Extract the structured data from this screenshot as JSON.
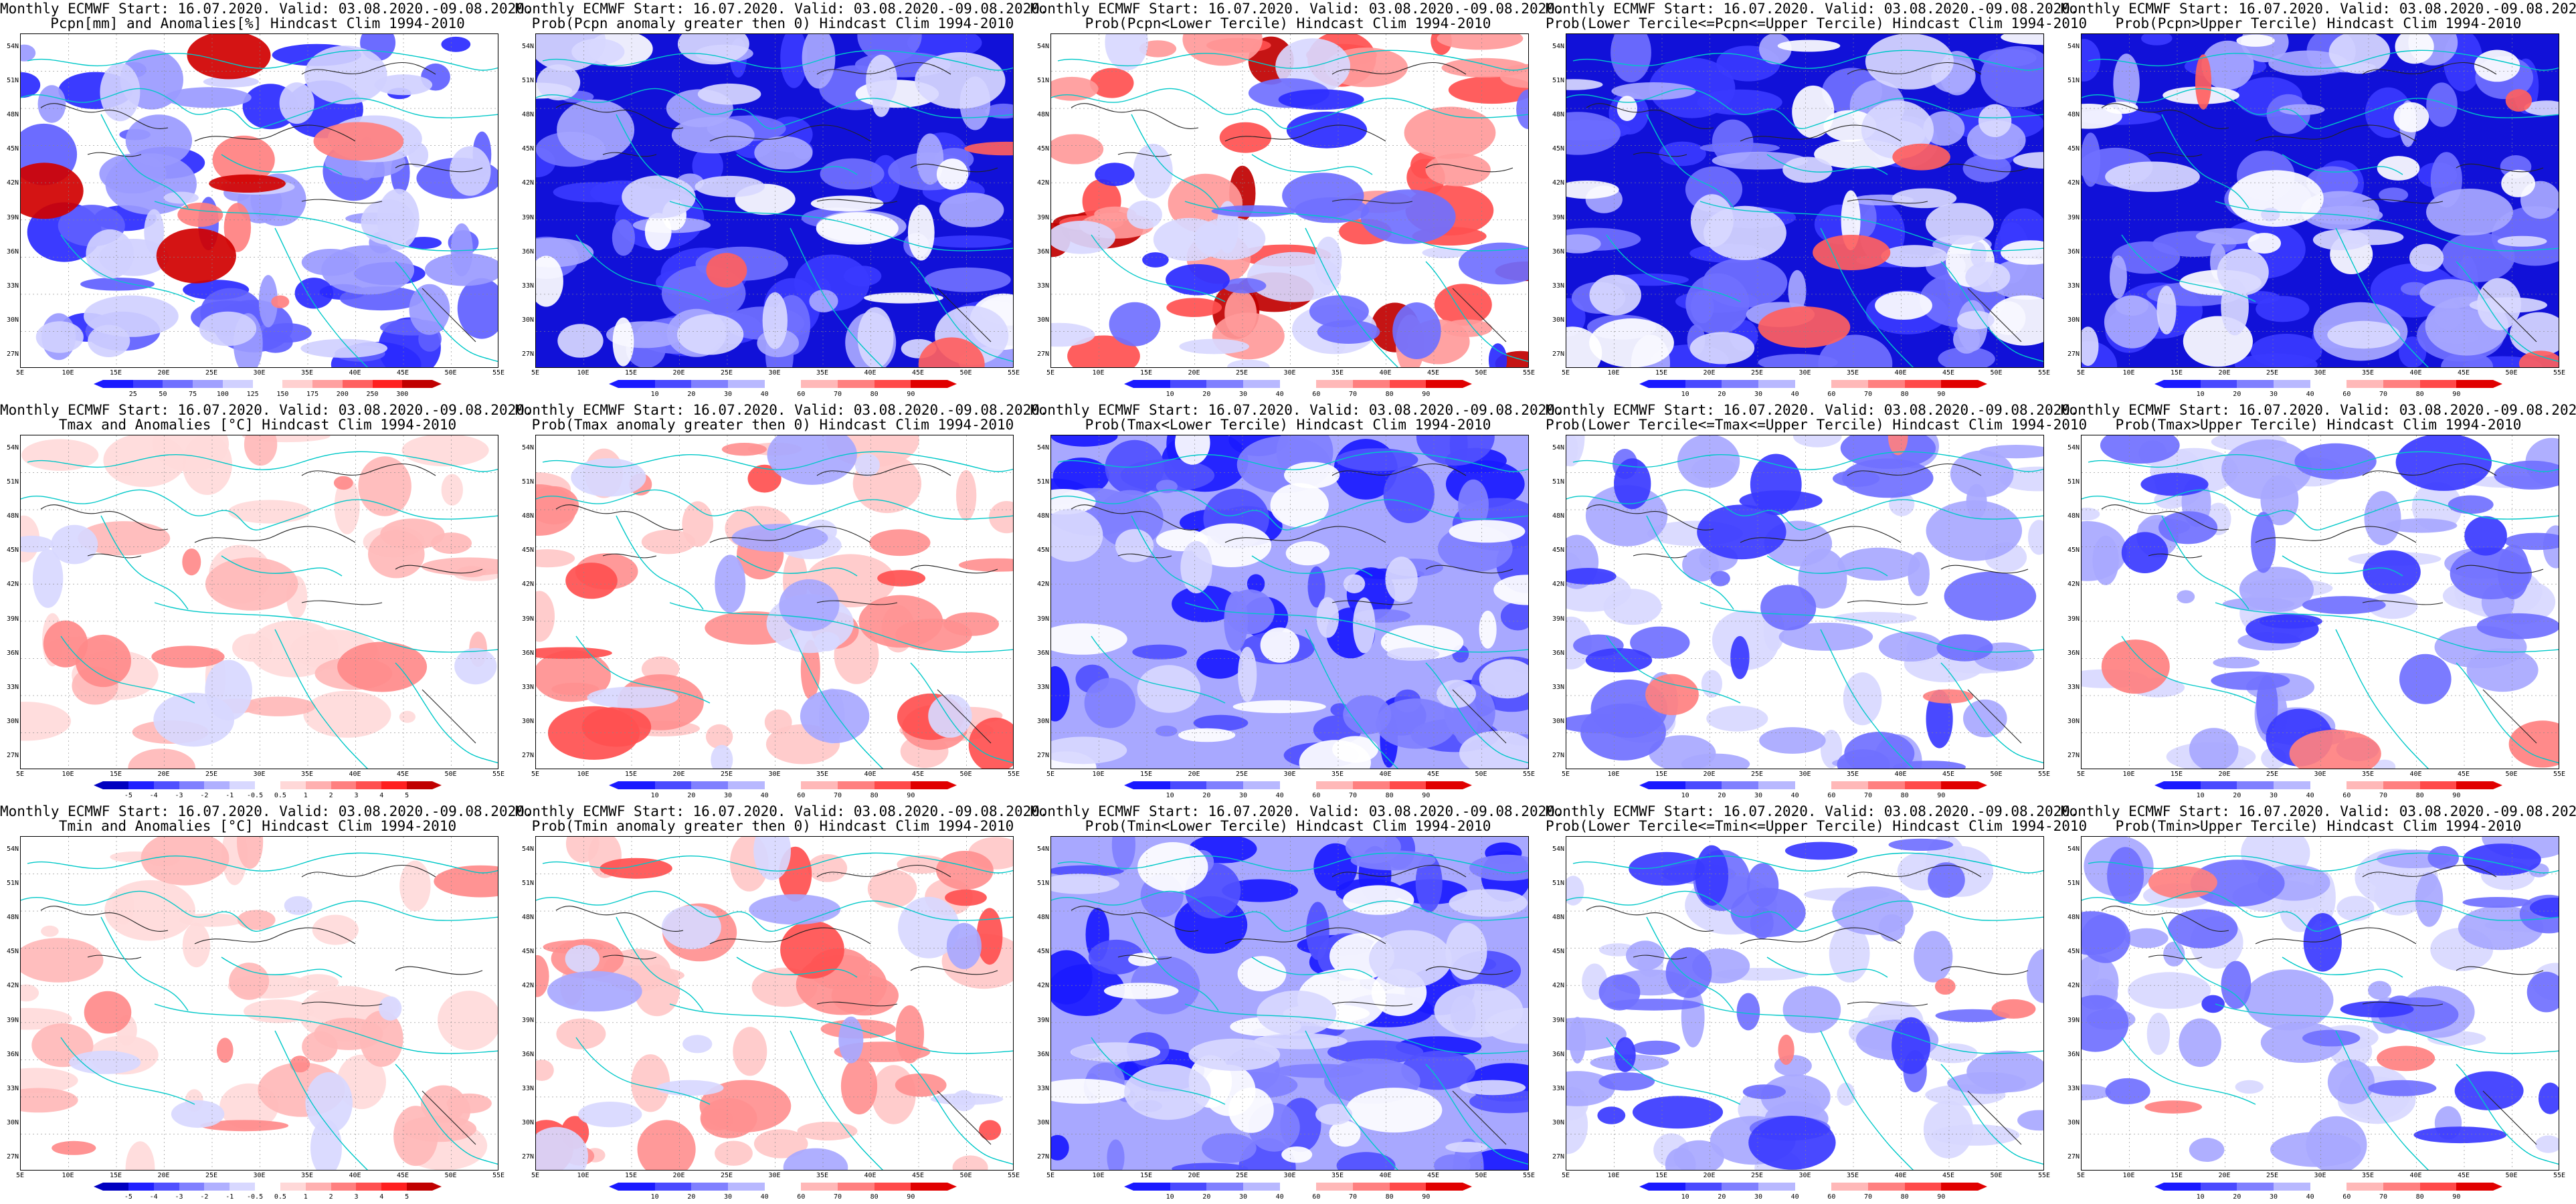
{
  "title_prefix": "Monthly ECMWF Start: 16.07.2020. Valid: 03.08.2020.-09.08.2020.",
  "lat_labels": [
    "54N",
    "51N",
    "48N",
    "45N",
    "42N",
    "39N",
    "36N",
    "33N",
    "30N",
    "27N"
  ],
  "lon_labels": [
    "5E",
    "10E",
    "15E",
    "20E",
    "25E",
    "30E",
    "35E",
    "40E",
    "45E",
    "50E",
    "55E"
  ],
  "scales": {
    "pcpn": {
      "ticks": [
        "25",
        "50",
        "75",
        "100",
        "125",
        "150",
        "175",
        "200",
        "250",
        "300"
      ],
      "colors": [
        "#1a1aff",
        "#4040ff",
        "#7070ff",
        "#a0a0ff",
        "#d0d0ff",
        "#ffffff",
        "#ffd0d0",
        "#ffa0a0",
        "#ff6060",
        "#ff2020",
        "#c00000"
      ]
    },
    "anom": {
      "ticks": [
        "-5",
        "-4",
        "-3",
        "-2",
        "-1",
        "-0.5",
        "0.5",
        "1",
        "2",
        "3",
        "4",
        "5"
      ],
      "colors": [
        "#0000c0",
        "#2020ff",
        "#5050ff",
        "#8080ff",
        "#b0b0ff",
        "#d8d8ff",
        "#ffffff",
        "#ffd8d8",
        "#ffb0b0",
        "#ff8080",
        "#ff5050",
        "#ff2020",
        "#c00000"
      ]
    },
    "prob": {
      "ticks": [
        "10",
        "20",
        "30",
        "40",
        "60",
        "70",
        "80",
        "90"
      ],
      "colors": [
        "#1a1aff",
        "#4a4aff",
        "#8080ff",
        "#b8b8ff",
        "#ffffff",
        "#ffb8b8",
        "#ff8080",
        "#ff4a4a",
        "#e00000"
      ]
    }
  },
  "panels": [
    {
      "subtitle": "Pcpn[mm] and Anomalies[%] Hindcast Clim 1994-2010",
      "scale": "pcpn",
      "style": "pcpn"
    },
    {
      "subtitle": "Prob(Pcpn anomaly greater then 0) Hindcast Clim 1994-2010",
      "scale": "prob",
      "style": "blue-deep"
    },
    {
      "subtitle": "Prob(Pcpn<Lower Tercile) Hindcast Clim 1994-2010",
      "scale": "prob",
      "style": "red-south"
    },
    {
      "subtitle": "Prob(Lower Tercile<=Pcpn<=Upper Tercile) Hindcast Clim 1994-2010",
      "scale": "prob",
      "style": "blue-deep"
    },
    {
      "subtitle": "Prob(Pcpn>Upper Tercile) Hindcast Clim 1994-2010",
      "scale": "prob",
      "style": "blue-deep"
    },
    {
      "subtitle": "Tmax and Anomalies [°C] Hindcast Clim 1994-2010",
      "scale": "anom",
      "style": "pink-light"
    },
    {
      "subtitle": "Prob(Tmax anomaly greater then 0) Hindcast Clim 1994-2010",
      "scale": "prob",
      "style": "pink"
    },
    {
      "subtitle": "Prob(Tmax<Lower Tercile) Hindcast Clim 1994-2010",
      "scale": "prob",
      "style": "blue-mixed"
    },
    {
      "subtitle": "Prob(Lower Tercile<=Tmax<=Upper Tercile) Hindcast Clim 1994-2010",
      "scale": "prob",
      "style": "blue-light"
    },
    {
      "subtitle": "Prob(Tmax>Upper Tercile) Hindcast Clim 1994-2010",
      "scale": "prob",
      "style": "blue-light"
    },
    {
      "subtitle": "Tmin and Anomalies [°C] Hindcast Clim 1994-2010",
      "scale": "anom",
      "style": "pink-light"
    },
    {
      "subtitle": "Prob(Tmin anomaly greater then 0) Hindcast Clim 1994-2010",
      "scale": "prob",
      "style": "pink"
    },
    {
      "subtitle": "Prob(Tmin<Lower Tercile) Hindcast Clim 1994-2010",
      "scale": "prob",
      "style": "blue-mixed"
    },
    {
      "subtitle": "Prob(Lower Tercile<=Tmin<=Upper Tercile) Hindcast Clim 1994-2010",
      "scale": "prob",
      "style": "blue-light"
    },
    {
      "subtitle": "Prob(Tmin>Upper Tercile) Hindcast Clim 1994-2010",
      "scale": "prob",
      "style": "blue-light"
    }
  ]
}
